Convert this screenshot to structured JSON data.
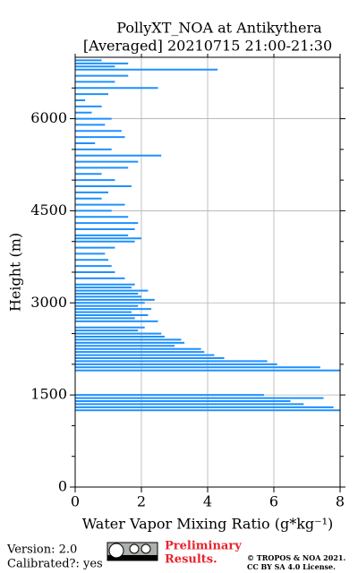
{
  "chart_data": {
    "type": "profile",
    "title": "PollyXT_NOA at Antikythera",
    "subtitle": "[Averaged] 20210715 21:00-21:30",
    "xlabel": "Water Vapor Mixing Ratio (g*kg⁻¹)",
    "ylabel": "Height (m)",
    "color": "#1e90ff",
    "xlim": [
      0,
      8
    ],
    "xticks": [
      0,
      2,
      4,
      6,
      8
    ],
    "ylim": [
      0,
      7000
    ],
    "yticks": [
      0,
      1500,
      3000,
      4500,
      6000
    ],
    "yticks_minor": [
      500,
      1000,
      2000,
      2500,
      3500,
      4000,
      5000,
      5500,
      6500
    ],
    "grid": true,
    "y": [
      1250,
      1300,
      1350,
      1400,
      1450,
      1500,
      1900,
      1950,
      2000,
      2050,
      2100,
      2150,
      2200,
      2250,
      2300,
      2350,
      2400,
      2450,
      2500,
      2550,
      2600,
      2700,
      2750,
      2800,
      2850,
      2900,
      2950,
      3000,
      3050,
      3100,
      3150,
      3200,
      3250,
      3300,
      3400,
      3500,
      3600,
      3700,
      3800,
      3900,
      4000,
      4050,
      4100,
      4200,
      4300,
      4400,
      4500,
      4600,
      4700,
      4800,
      4900,
      5000,
      5100,
      5200,
      5300,
      5400,
      5500,
      5600,
      5700,
      5800,
      5900,
      6000,
      6100,
      6200,
      6300,
      6400,
      6500,
      6600,
      6700,
      6800,
      6850,
      6900,
      6950
    ],
    "values": [
      8,
      7.8,
      6.9,
      6.5,
      7.5,
      5.7,
      8,
      7.4,
      6.1,
      5.8,
      4.5,
      4.2,
      3.9,
      3.8,
      3.0,
      3.3,
      3.2,
      2.7,
      2.6,
      1.9,
      2.1,
      2.5,
      1.8,
      2.2,
      1.7,
      2.3,
      1.9,
      2.1,
      2.4,
      2.0,
      1.9,
      2.2,
      1.7,
      1.8,
      1.5,
      1.2,
      1.1,
      1.0,
      0.9,
      1.2,
      1.8,
      2.0,
      1.6,
      1.8,
      1.9,
      1.6,
      1.1,
      1.5,
      0.8,
      1.0,
      1.7,
      1.2,
      0.8,
      1.6,
      1.9,
      2.6,
      1.1,
      0.6,
      1.5,
      1.4,
      0.9,
      1.1,
      0.5,
      0.8,
      0.3,
      1.0,
      2.5,
      1.2,
      1.6,
      4.3,
      1.2,
      1.6,
      0.8
    ]
  },
  "footer": {
    "version": "Version: 2.0",
    "calibrated": "Calibrated?: yes",
    "preliminary": [
      "Preliminary",
      "Results."
    ],
    "copyright": [
      "© TROPOS & NOA 2021.",
      "CC BY SA 4.0 License."
    ]
  }
}
